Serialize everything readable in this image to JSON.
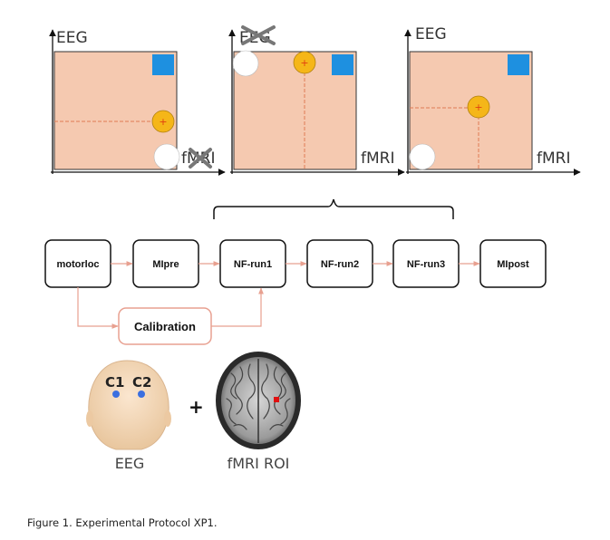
{
  "panels": [
    {
      "y_label": "EEG",
      "x_label": "fMRI",
      "y_label_crossed": false,
      "x_label_crossed": true
    },
    {
      "y_label": "EEG",
      "x_label": "fMRI",
      "y_label_crossed": true,
      "x_label_crossed": false
    },
    {
      "y_label": "EEG",
      "x_label": "fMRI",
      "y_label_crossed": false,
      "x_label_crossed": false
    }
  ],
  "protocol": {
    "steps": [
      "motorloc",
      "MIpre",
      "NF-run1",
      "NF-run2",
      "NF-run3",
      "MIpost"
    ],
    "calibration": "Calibration"
  },
  "illustrations": {
    "electrodes": [
      "C1",
      "C2"
    ],
    "plus": "+",
    "eeg_label": "EEG",
    "fmri_label": "fMRI ROI"
  },
  "caption": "Figure 1. Experimental Protocol XP1.",
  "colors": {
    "panel_fill": "#f5c9b0",
    "blue_square": "#1e90e0",
    "target_circle": "#f5b618",
    "arrow": "#e8a090",
    "electrode": "#3b6fe0",
    "roi": "#e01010"
  }
}
